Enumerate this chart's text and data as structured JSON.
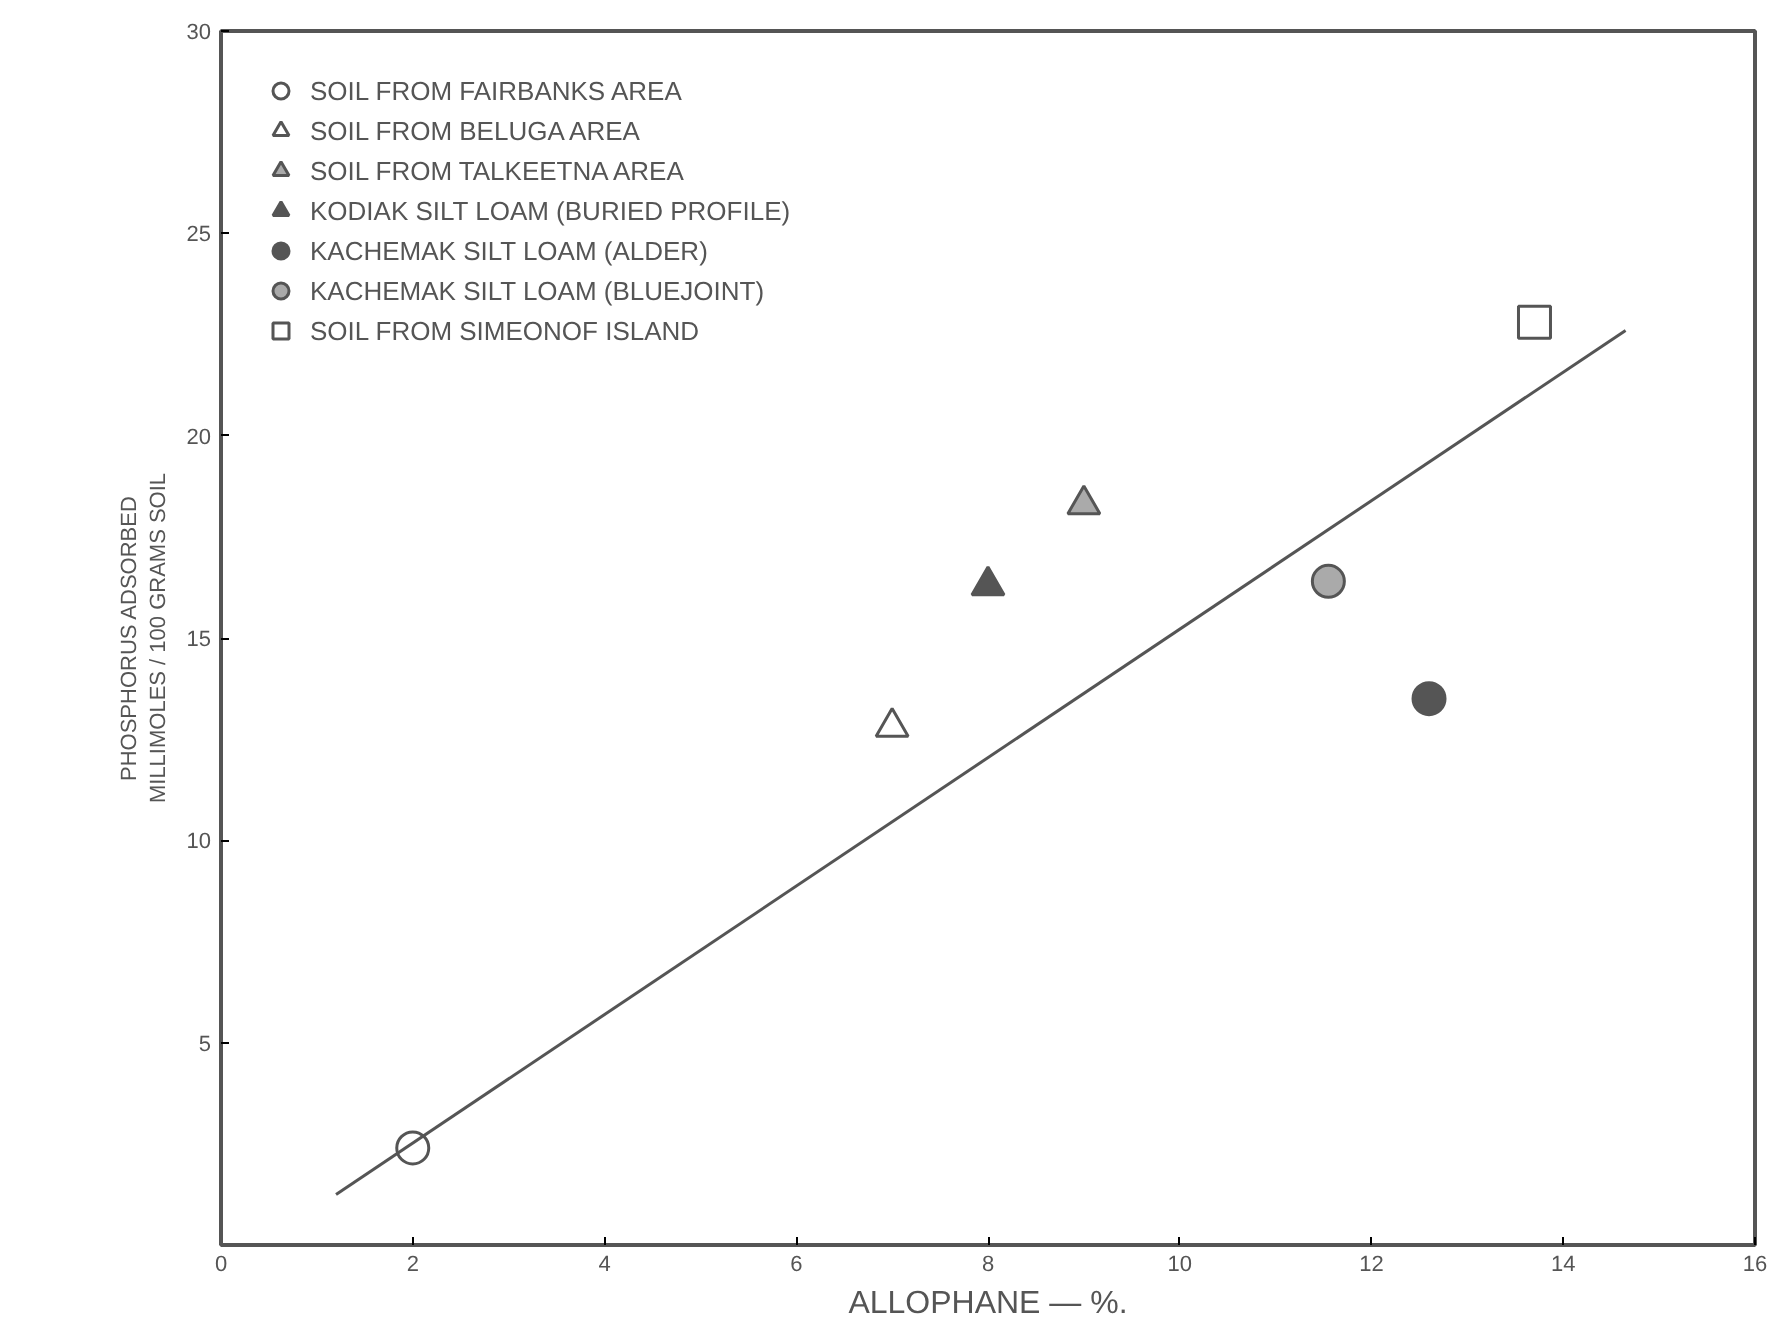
{
  "chart_data": {
    "type": "scatter",
    "xlabel": "ALLOPHANE — %.",
    "ylabel": "PHOSPHORUS ADSORBED\nMILLIMOLES / 100 GRAMS SOIL",
    "xlim": [
      0,
      16
    ],
    "ylim": [
      0,
      30
    ],
    "xticks": [
      0,
      2,
      4,
      6,
      8,
      10,
      12,
      14,
      16
    ],
    "yticks": [
      5,
      10,
      15,
      20,
      25,
      30
    ],
    "grid": false,
    "legend": "top left",
    "series": [
      {
        "name": "SOIL FROM FAIRBANKS AREA",
        "color": "#555555",
        "marker": "circle-open",
        "x": [
          2.0
        ],
        "values": [
          2.4
        ]
      },
      {
        "name": "SOIL FROM BELUGA AREA",
        "color": "#555555",
        "marker": "triangle-open",
        "x": [
          7.0
        ],
        "values": [
          12.8
        ]
      },
      {
        "name": "SOIL FROM TALKEETNA AREA",
        "color": "#555555",
        "marker": "triangle-half",
        "x": [
          9.0
        ],
        "values": [
          18.3
        ]
      },
      {
        "name": "KODIAK SILT LOAM (BURIED PROFILE)",
        "color": "#555555",
        "marker": "triangle",
        "x": [
          8.0
        ],
        "values": [
          16.3
        ]
      },
      {
        "name": "KACHEMAK SILT LOAM (ALDER)",
        "color": "#555555",
        "marker": "circle",
        "x": [
          12.6
        ],
        "values": [
          13.5
        ]
      },
      {
        "name": "KACHEMAK SILT LOAM (BLUEJOINT)",
        "color": "#555555",
        "marker": "circle-half",
        "x": [
          11.55
        ],
        "values": [
          16.4
        ]
      },
      {
        "name": "SOIL FROM SIMEONOF ISLAND",
        "color": "#555555",
        "marker": "square-open",
        "x": [
          13.7
        ],
        "values": [
          22.8
        ]
      },
      {
        "type": "line",
        "color": "#555555",
        "x": [
          1.2,
          14.65
        ],
        "values": [
          1.25,
          22.6
        ]
      }
    ]
  }
}
